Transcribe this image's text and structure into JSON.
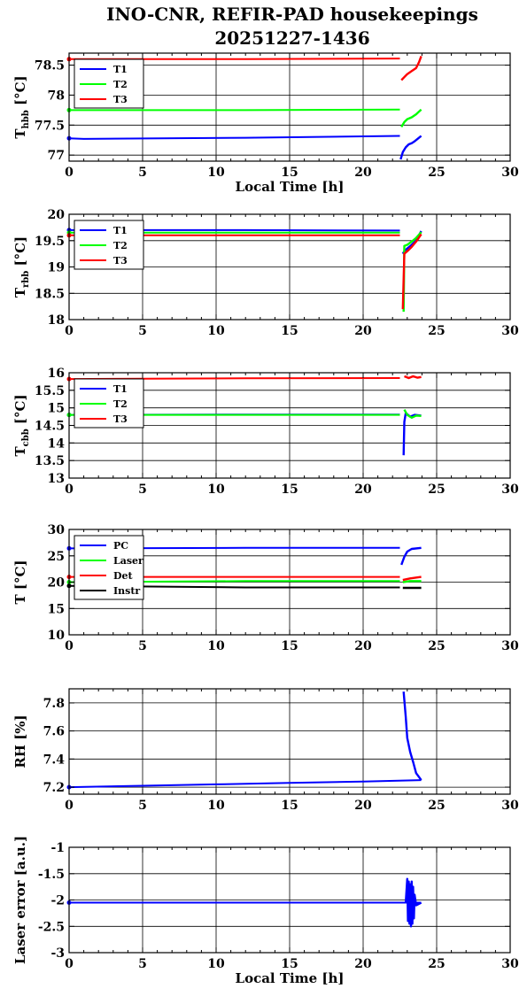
{
  "title": {
    "line1": "INO-CNR, REFIR-PAD housekeepings",
    "line2": "20251227-1436"
  },
  "chart_data": [
    {
      "type": "line",
      "id": "hbb",
      "ylabel": {
        "main": "T",
        "sub": "hbb",
        "unit": "[°C]"
      },
      "xlabel": "Local Time [h]",
      "xlim": [
        0,
        30
      ],
      "xticks": [
        0,
        5,
        10,
        15,
        20,
        25,
        30
      ],
      "ylim": [
        76.9,
        78.7
      ],
      "yticks": [
        77,
        77.5,
        78,
        78.5
      ],
      "ytick_labels": [
        "77",
        "77.5",
        "78",
        "78.5"
      ],
      "grid": true,
      "legend": "top-left",
      "series": [
        {
          "name": "T1",
          "color": "#0000ff",
          "points": [
            [
              0,
              77.28
            ],
            [
              1,
              77.27
            ],
            [
              12,
              77.29
            ],
            [
              22.5,
              77.32
            ]
          ],
          "segments": [
            [
              [
                22.55,
                76.93
              ],
              [
                22.7,
                77.05
              ],
              [
                22.9,
                77.13
              ],
              [
                23.1,
                77.18
              ],
              [
                23.3,
                77.2
              ],
              [
                23.5,
                77.23
              ],
              [
                23.7,
                77.27
              ],
              [
                23.95,
                77.32
              ]
            ]
          ]
        },
        {
          "name": "T2",
          "color": "#00ff00",
          "points": [
            [
              0,
              77.75
            ],
            [
              12,
              77.75
            ],
            [
              22.5,
              77.76
            ]
          ],
          "segments": [
            [
              [
                22.6,
                77.47
              ],
              [
                22.8,
                77.55
              ],
              [
                23.0,
                77.6
              ],
              [
                23.3,
                77.63
              ],
              [
                23.6,
                77.68
              ],
              [
                23.95,
                77.76
              ]
            ]
          ]
        },
        {
          "name": "T3",
          "color": "#ff0000",
          "points": [
            [
              0,
              78.6
            ],
            [
              12,
              78.6
            ],
            [
              22.5,
              78.61
            ]
          ],
          "segments": [
            [
              [
                22.6,
                78.25
              ],
              [
                22.8,
                78.3
              ],
              [
                23.0,
                78.35
              ],
              [
                23.3,
                78.4
              ],
              [
                23.6,
                78.45
              ],
              [
                23.8,
                78.55
              ],
              [
                23.95,
                78.65
              ]
            ]
          ]
        }
      ]
    },
    {
      "type": "line",
      "id": "rbb",
      "ylabel": {
        "main": "T",
        "sub": "rbb",
        "unit": "[°C]"
      },
      "xlabel": "",
      "xlim": [
        0,
        30
      ],
      "xticks": [
        0,
        5,
        10,
        15,
        20,
        25,
        30
      ],
      "ylim": [
        18,
        20
      ],
      "yticks": [
        18,
        18.5,
        19,
        19.5,
        20
      ],
      "ytick_labels": [
        "18",
        "18.5",
        "19",
        "19.5",
        "20"
      ],
      "grid": true,
      "legend": "top-left",
      "series": [
        {
          "name": "T1",
          "color": "#0000ff",
          "points": [
            [
              0,
              19.7
            ],
            [
              12,
              19.7
            ],
            [
              22.5,
              19.69
            ]
          ],
          "segments": [
            [
              [
                22.7,
                19.25
              ],
              [
                22.8,
                19.3
              ],
              [
                23.0,
                19.35
              ],
              [
                23.3,
                19.42
              ],
              [
                23.6,
                19.5
              ],
              [
                23.95,
                19.68
              ]
            ]
          ]
        },
        {
          "name": "T2",
          "color": "#00ff00",
          "points": [
            [
              0,
              19.65
            ],
            [
              12,
              19.65
            ],
            [
              22.5,
              19.65
            ]
          ],
          "segments": [
            [
              [
                22.75,
                18.15
              ],
              [
                22.8,
                19.4
              ],
              [
                23.0,
                19.42
              ],
              [
                23.3,
                19.48
              ],
              [
                23.6,
                19.55
              ],
              [
                23.95,
                19.66
              ]
            ]
          ]
        },
        {
          "name": "T3",
          "color": "#ff0000",
          "points": [
            [
              0,
              19.6
            ],
            [
              12,
              19.6
            ],
            [
              22.5,
              19.6
            ]
          ],
          "segments": [
            [
              [
                22.7,
                18.2
              ],
              [
                22.8,
                19.25
              ],
              [
                23.0,
                19.3
              ],
              [
                23.3,
                19.38
              ],
              [
                23.6,
                19.48
              ],
              [
                23.95,
                19.62
              ]
            ]
          ]
        }
      ]
    },
    {
      "type": "line",
      "id": "cbb",
      "ylabel": {
        "main": "T",
        "sub": "cbb",
        "unit": "[°C]"
      },
      "xlabel": "",
      "xlim": [
        0,
        30
      ],
      "xticks": [
        0,
        5,
        10,
        15,
        20,
        25,
        30
      ],
      "ylim": [
        13,
        16
      ],
      "yticks": [
        13,
        13.5,
        14,
        14.5,
        15,
        15.5,
        16
      ],
      "ytick_labels": [
        "13",
        "13.5",
        "14",
        "14.5",
        "15",
        "15.5",
        "16"
      ],
      "grid": true,
      "legend": "top-left",
      "series": [
        {
          "name": "T1",
          "color": "#0000ff",
          "points": [
            [
              0,
              14.8
            ],
            [
              12,
              14.81
            ],
            [
              22.5,
              14.81
            ]
          ],
          "segments": [
            [
              [
                22.75,
                13.65
              ],
              [
                22.8,
                14.6
              ],
              [
                22.9,
                14.85
              ],
              [
                23.2,
                14.75
              ],
              [
                23.5,
                14.8
              ],
              [
                23.95,
                14.78
              ]
            ]
          ]
        },
        {
          "name": "T2",
          "color": "#00ff00",
          "points": [
            [
              0,
              14.8
            ],
            [
              12,
              14.8
            ],
            [
              22.5,
              14.8
            ]
          ],
          "segments": [
            [
              [
                22.8,
                14.95
              ],
              [
                23.0,
                14.8
              ],
              [
                23.3,
                14.72
              ],
              [
                23.6,
                14.78
              ],
              [
                23.95,
                14.77
              ]
            ]
          ]
        },
        {
          "name": "T3",
          "color": "#ff0000",
          "points": [
            [
              0,
              15.82
            ],
            [
              12,
              15.84
            ],
            [
              22.5,
              15.85
            ]
          ],
          "segments": [
            [
              [
                22.8,
                15.9
              ],
              [
                23.1,
                15.85
              ],
              [
                23.4,
                15.9
              ],
              [
                23.7,
                15.86
              ],
              [
                23.95,
                15.88
              ]
            ]
          ]
        }
      ]
    },
    {
      "type": "line",
      "id": "temps",
      "ylabel": {
        "main": "T [°C]",
        "sub": "",
        "unit": ""
      },
      "xlabel": "",
      "xlim": [
        0,
        30
      ],
      "xticks": [
        0,
        5,
        10,
        15,
        20,
        25,
        30
      ],
      "ylim": [
        10,
        30
      ],
      "yticks": [
        10,
        15,
        20,
        25,
        30
      ],
      "ytick_labels": [
        "10",
        "15",
        "20",
        "25",
        "30"
      ],
      "grid": true,
      "legend": "top-left",
      "series": [
        {
          "name": "PC",
          "color": "#0000ff",
          "points": [
            [
              0,
              26.4
            ],
            [
              12,
              26.5
            ],
            [
              22.5,
              26.5
            ]
          ],
          "segments": [
            [
              [
                22.6,
                23.3
              ],
              [
                22.8,
                24.8
              ],
              [
                23.0,
                25.8
              ],
              [
                23.3,
                26.3
              ],
              [
                23.95,
                26.5
              ]
            ]
          ]
        },
        {
          "name": "Laser",
          "color": "#00ff00",
          "points": [
            [
              0,
              20.0
            ],
            [
              12,
              20.2
            ],
            [
              22.5,
              20.2
            ]
          ],
          "segments": [
            [
              [
                22.7,
                20.0
              ],
              [
                23.2,
                20.2
              ],
              [
                23.95,
                20.2
              ]
            ]
          ]
        },
        {
          "name": "Det",
          "color": "#ff0000",
          "points": [
            [
              0,
              21.0
            ],
            [
              12,
              21.0
            ],
            [
              22.5,
              21.0
            ]
          ],
          "segments": [
            [
              [
                22.7,
                20.4
              ],
              [
                23.2,
                20.7
              ],
              [
                23.95,
                21.0
              ]
            ]
          ]
        },
        {
          "name": "Instr",
          "color": "#000000",
          "points": [
            [
              0,
              19.3
            ],
            [
              12,
              19.0
            ],
            [
              22.5,
              19.0
            ]
          ],
          "segments": [
            [
              [
                22.7,
                18.9
              ],
              [
                23.95,
                18.9
              ]
            ]
          ]
        }
      ]
    },
    {
      "type": "line",
      "id": "rh",
      "ylabel": {
        "main": "RH [%]",
        "sub": "",
        "unit": ""
      },
      "xlabel": "",
      "xlim": [
        0,
        30
      ],
      "xticks": [
        0,
        5,
        10,
        15,
        20,
        25,
        30
      ],
      "ylim": [
        7.15,
        7.9
      ],
      "yticks": [
        7.2,
        7.4,
        7.6,
        7.8
      ],
      "ytick_labels": [
        "7.2",
        "7.4",
        "7.6",
        "7.8"
      ],
      "grid": true,
      "legend": "none",
      "series": [
        {
          "name": "",
          "color": "#0000ff",
          "points": [
            [
              0,
              7.2
            ],
            [
              5,
              7.21
            ],
            [
              10,
              7.22
            ],
            [
              15,
              7.23
            ],
            [
              20,
              7.24
            ],
            [
              23.95,
              7.25
            ]
          ],
          "segments": [
            [
              [
                22.75,
                7.88
              ],
              [
                22.9,
                7.7
              ],
              [
                23.0,
                7.55
              ],
              [
                23.2,
                7.45
              ],
              [
                23.4,
                7.38
              ],
              [
                23.6,
                7.3
              ],
              [
                23.95,
                7.25
              ]
            ]
          ]
        }
      ]
    },
    {
      "type": "line",
      "id": "laser",
      "ylabel": {
        "main": "Laser error [a.u.]",
        "sub": "",
        "unit": ""
      },
      "xlabel": "Local Time [h]",
      "xlim": [
        0,
        30
      ],
      "xticks": [
        0,
        5,
        10,
        15,
        20,
        25,
        30
      ],
      "ylim": [
        -3,
        -1
      ],
      "yticks": [
        -3,
        -2.5,
        -2,
        -1.5,
        -1
      ],
      "ytick_labels": [
        "-3",
        "-2.5",
        "-2",
        "-1.5",
        "-1"
      ],
      "grid": true,
      "legend": "none",
      "series": [
        {
          "name": "",
          "color": "#0000ff",
          "points": [
            [
              0,
              -2.05
            ],
            [
              12,
              -2.05
            ],
            [
              23.95,
              -2.05
            ]
          ],
          "segments": [
            [
              [
                22.9,
                -2.05
              ],
              [
                23.0,
                -1.6
              ],
              [
                23.05,
                -2.4
              ],
              [
                23.1,
                -1.65
              ],
              [
                23.15,
                -2.45
              ],
              [
                23.2,
                -1.7
              ],
              [
                23.25,
                -2.5
              ],
              [
                23.3,
                -1.65
              ],
              [
                23.35,
                -2.45
              ],
              [
                23.4,
                -1.75
              ],
              [
                23.45,
                -2.35
              ],
              [
                23.5,
                -1.9
              ],
              [
                23.6,
                -2.1
              ],
              [
                23.95,
                -2.05
              ]
            ]
          ]
        }
      ]
    }
  ]
}
